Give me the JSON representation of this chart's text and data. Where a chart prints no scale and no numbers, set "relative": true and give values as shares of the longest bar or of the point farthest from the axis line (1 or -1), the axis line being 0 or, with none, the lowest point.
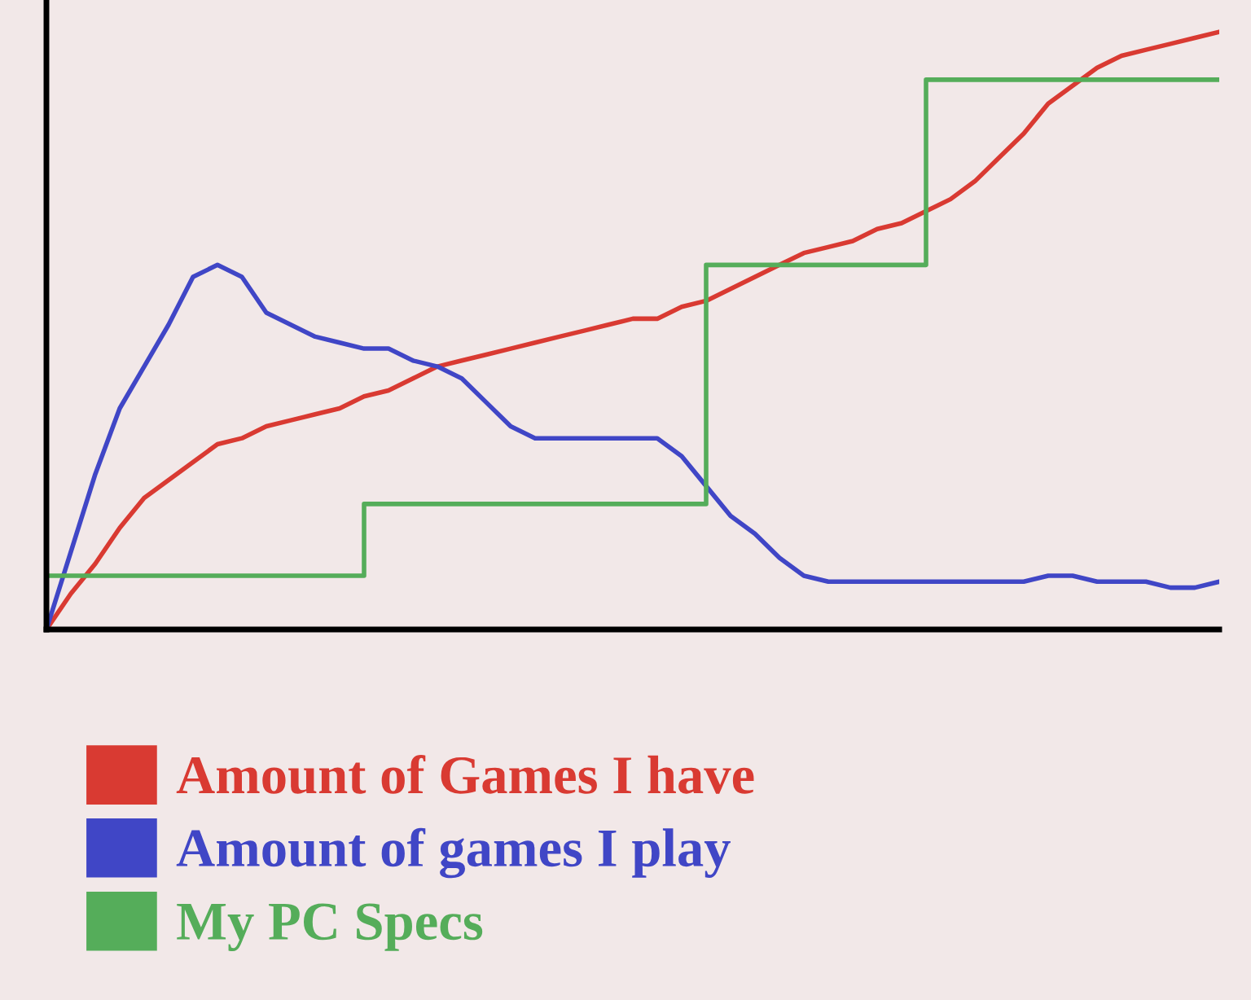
{
  "chart_data": {
    "type": "line",
    "relative": true,
    "legend": "bottom",
    "grid": false,
    "marker": "none",
    "line_style": "solid",
    "categories": [
      null,
      null,
      null,
      null,
      null,
      null,
      null,
      null,
      null,
      null,
      null,
      null,
      null,
      null,
      null,
      null,
      null,
      null,
      null,
      null,
      null,
      null,
      null,
      null,
      null,
      null,
      null,
      null,
      null,
      null,
      null,
      null,
      null,
      null,
      null,
      null,
      null,
      null,
      null,
      null,
      null,
      null,
      null,
      null,
      null,
      null,
      null,
      null,
      null
    ],
    "series": [
      {
        "name": "Amount of Games I have",
        "color": "#d93a32",
        "values": [
          0,
          0.06,
          0.11,
          0.17,
          0.22,
          0.25,
          0.28,
          0.31,
          0.32,
          0.34,
          0.35,
          0.36,
          0.37,
          0.39,
          0.4,
          0.42,
          0.44,
          0.45,
          0.46,
          0.47,
          0.48,
          0.49,
          0.5,
          0.51,
          0.52,
          0.52,
          0.54,
          0.55,
          0.57,
          0.59,
          0.61,
          0.63,
          0.64,
          0.65,
          0.67,
          0.68,
          0.7,
          0.72,
          0.75,
          0.79,
          0.83,
          0.88,
          0.91,
          0.94,
          0.96,
          0.97,
          0.98,
          0.99,
          1
        ]
      },
      {
        "name": "Amount of games I play",
        "color": "#4046c6",
        "values": [
          0,
          0.13,
          0.26,
          0.37,
          0.44,
          0.51,
          0.59,
          0.61,
          0.59,
          0.53,
          0.51,
          0.49,
          0.48,
          0.47,
          0.47,
          0.45,
          0.44,
          0.42,
          0.38,
          0.34,
          0.32,
          0.32,
          0.32,
          0.32,
          0.32,
          0.32,
          0.29,
          0.24,
          0.19,
          0.16,
          0.12,
          0.09,
          0.08,
          0.08,
          0.08,
          0.08,
          0.08,
          0.08,
          0.08,
          0.08,
          0.08,
          0.09,
          0.09,
          0.08,
          0.08,
          0.08,
          0.07,
          0.07,
          0.08
        ]
      },
      {
        "name": "My PC Specs",
        "color": "#55ad5a",
        "type": "step",
        "values": [
          0.09,
          0.09,
          0.09,
          0.09,
          0.09,
          0.09,
          0.09,
          0.09,
          0.09,
          0.09,
          0.09,
          0.09,
          0.09,
          0.21,
          0.21,
          0.21,
          0.21,
          0.21,
          0.21,
          0.21,
          0.21,
          0.21,
          0.21,
          0.21,
          0.21,
          0.21,
          0.21,
          0.61,
          0.61,
          0.61,
          0.61,
          0.61,
          0.61,
          0.61,
          0.61,
          0.61,
          0.92,
          0.92,
          0.92,
          0.92,
          0.92,
          0.92,
          0.92,
          0.92,
          0.92,
          0.92,
          0.92,
          0.92,
          0.92
        ]
      }
    ]
  }
}
